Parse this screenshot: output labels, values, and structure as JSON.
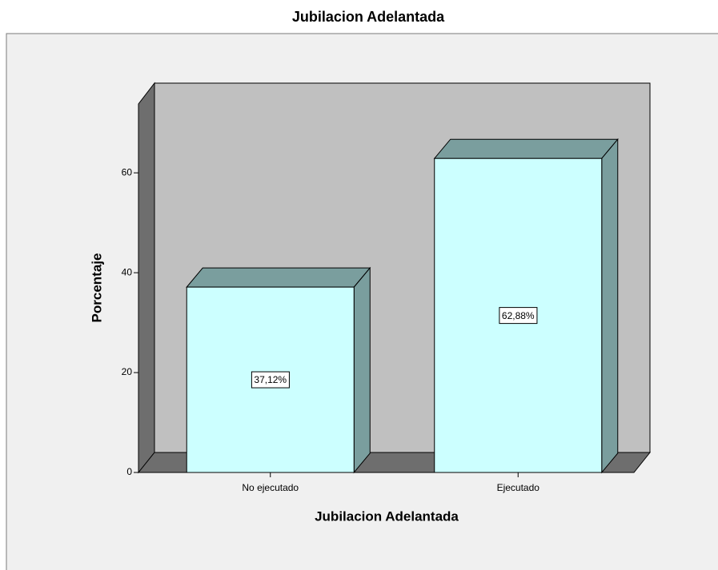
{
  "chart_data": {
    "type": "bar3d",
    "title": "Jubilacion Adelantada",
    "x_label": "Jubilacion Adelantada",
    "y_label": "Porcentaje",
    "categories": [
      "No ejecutado",
      "Ejecutado"
    ],
    "values": [
      37.12,
      62.88
    ],
    "value_labels": [
      "37,12%",
      "62,88%"
    ],
    "color": "#ccffff",
    "ylim": [
      0,
      73.8
    ],
    "yticks": [
      0,
      20,
      40,
      60
    ]
  }
}
